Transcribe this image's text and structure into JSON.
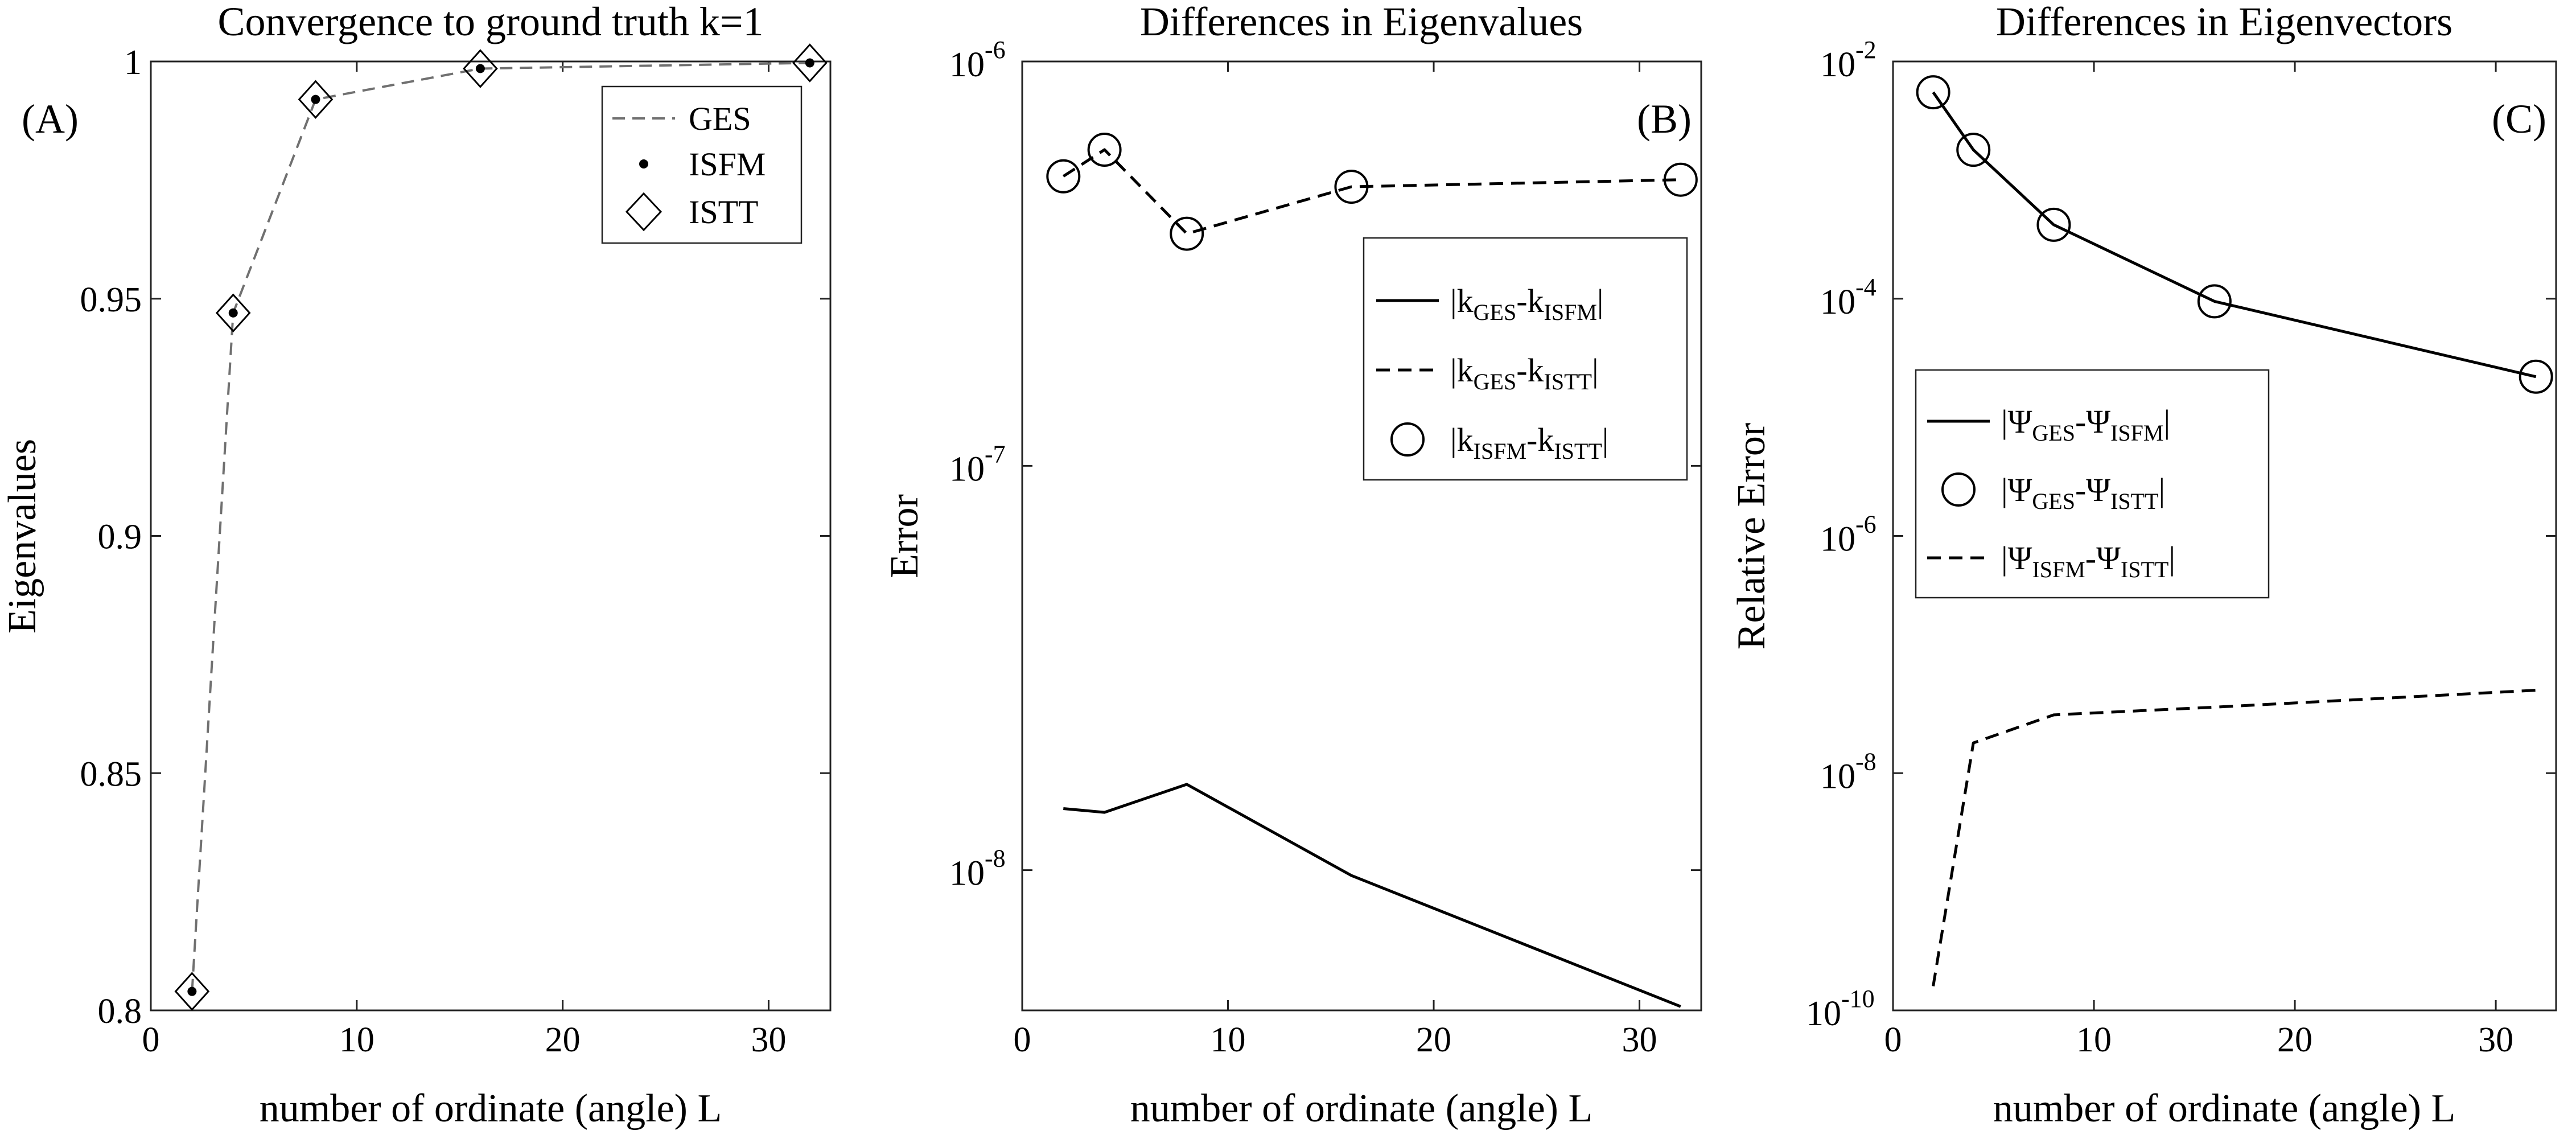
{
  "chart_data": [
    {
      "id": "A",
      "type": "line",
      "title": "Convergence to ground truth k=1",
      "panel_label": "(A)",
      "xlabel": "number of ordinate (angle) L",
      "ylabel": "Eigenvalues",
      "xlim": [
        0,
        33
      ],
      "ylim": [
        0.8,
        1.0
      ],
      "yscale": "linear",
      "xticks": [
        0,
        10,
        20,
        30
      ],
      "yticks": [
        0.8,
        0.85,
        0.9,
        0.95,
        1.0
      ],
      "ytick_labels": [
        "0.8",
        "0.85",
        "0.9",
        "0.95",
        "1"
      ],
      "x": [
        2,
        4,
        8,
        16,
        32
      ],
      "series": [
        {
          "name": "GES",
          "style": "dashed-gray",
          "values": [
            0.804,
            0.947,
            0.992,
            0.9985,
            0.9997
          ]
        },
        {
          "name": "ISFM",
          "style": "dot",
          "values": [
            0.804,
            0.947,
            0.992,
            0.9985,
            0.9997
          ]
        },
        {
          "name": "ISTT",
          "style": "diamond",
          "values": [
            0.804,
            0.947,
            0.992,
            0.9985,
            0.9997
          ]
        }
      ],
      "legend_position": "top-right",
      "legend": [
        {
          "main": "GES"
        },
        {
          "main": "ISFM"
        },
        {
          "main": "ISTT"
        }
      ]
    },
    {
      "id": "B",
      "type": "line",
      "title": "Differences in Eigenvalues",
      "panel_label": "(B)",
      "xlabel": "number of ordinate (angle) L",
      "ylabel": "Error",
      "xlim": [
        0,
        33
      ],
      "ylim": [
        4.5e-09,
        1e-06
      ],
      "yscale": "log",
      "xticks": [
        0,
        10,
        20,
        30
      ],
      "yticks": [
        1e-08,
        1e-07,
        1e-06
      ],
      "ytick_labels": [
        {
          "base": "10",
          "exp": "-8"
        },
        {
          "base": "10",
          "exp": "-7"
        },
        {
          "base": "10",
          "exp": "-6"
        }
      ],
      "x": [
        2,
        4,
        8,
        16,
        32
      ],
      "series": [
        {
          "name": "|kGES-kISFM|",
          "style": "solid",
          "values": [
            1.42e-08,
            1.39e-08,
            1.63e-08,
            9.7e-09,
            4.6e-09
          ]
        },
        {
          "name": "|kGES-kISTT|",
          "style": "dashed",
          "values": [
            5.2e-07,
            6.05e-07,
            3.75e-07,
            4.9e-07,
            5.1e-07
          ]
        },
        {
          "name": "|kISFM-kISTT|",
          "style": "circle",
          "values": [
            5.2e-07,
            6.05e-07,
            3.75e-07,
            4.9e-07,
            5.1e-07
          ]
        }
      ],
      "legend_position": "upper-right",
      "legend": [
        {
          "p1": "|k",
          "s1": "GES",
          "p2": "-k",
          "s2": "ISFM",
          "p3": "|"
        },
        {
          "p1": "|k",
          "s1": "GES",
          "p2": "-k",
          "s2": "ISTT",
          "p3": "|"
        },
        {
          "p1": "|k",
          "s1": "ISFM",
          "p2": "-k",
          "s2": "ISTT",
          "p3": "|"
        }
      ]
    },
    {
      "id": "C",
      "type": "line",
      "title": "Differences in Eigenvectors",
      "panel_label": "(C)",
      "xlabel": "number of ordinate (angle) L",
      "ylabel": "Relative Error",
      "xlim": [
        0,
        33
      ],
      "ylim": [
        1e-10,
        0.01
      ],
      "yscale": "log",
      "xticks": [
        0,
        10,
        20,
        30
      ],
      "yticks": [
        1e-10,
        1e-08,
        1e-06,
        0.0001,
        0.01
      ],
      "ytick_labels": [
        {
          "base": "10",
          "exp": "-10"
        },
        {
          "base": "10",
          "exp": "-8"
        },
        {
          "base": "10",
          "exp": "-6"
        },
        {
          "base": "10",
          "exp": "-4"
        },
        {
          "base": "10",
          "exp": "-2"
        }
      ],
      "x": [
        2,
        4,
        8,
        16,
        32
      ],
      "series": [
        {
          "name": "|ΨGES-ΨISFM|",
          "style": "solid",
          "values": [
            0.0055,
            0.0018,
            0.00042,
            9.5e-05,
            2.2e-05
          ]
        },
        {
          "name": "|ΨGES-ΨISTT|",
          "style": "circle",
          "values": [
            0.0055,
            0.0018,
            0.00042,
            9.5e-05,
            2.2e-05
          ]
        },
        {
          "name": "|ΨISFM-ΨISTT|",
          "style": "dashed",
          "values": [
            1.6e-10,
            1.8e-08,
            3.1e-08,
            3.6e-08,
            5e-08
          ]
        }
      ],
      "legend_position": "middle-right",
      "legend": [
        {
          "p1": "|Ψ",
          "s1": "GES",
          "p2": "-Ψ",
          "s2": "ISFM",
          "p3": "|"
        },
        {
          "p1": "|Ψ",
          "s1": "GES",
          "p2": "-Ψ",
          "s2": "ISTT",
          "p3": "|"
        },
        {
          "p1": "|Ψ",
          "s1": "ISFM",
          "p2": "-Ψ",
          "s2": "ISTT",
          "p3": "|"
        }
      ]
    }
  ]
}
